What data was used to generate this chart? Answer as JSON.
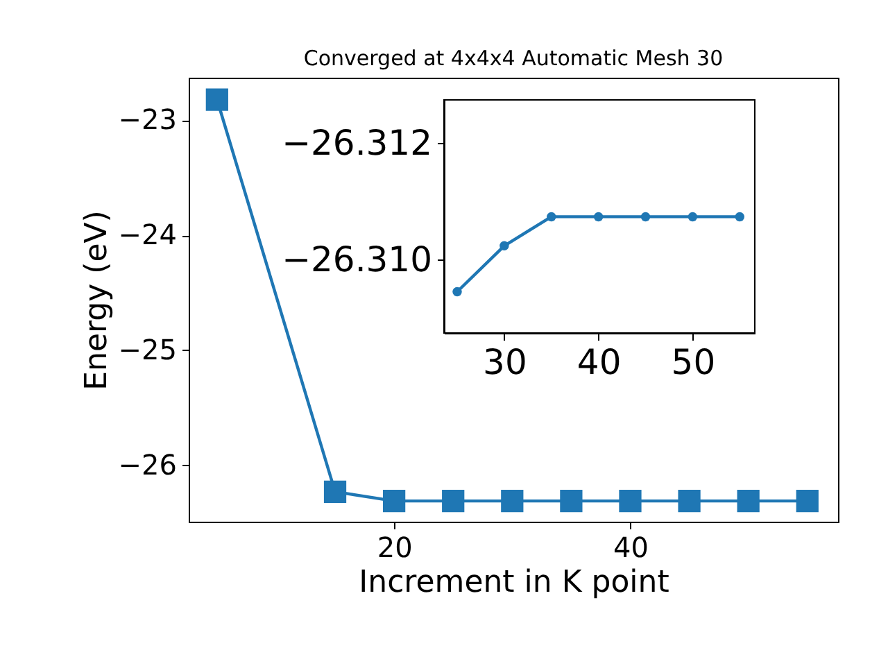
{
  "chart_data": [
    {
      "type": "line",
      "title": "Converged at 4x4x4 Automatic Mesh 30",
      "xlabel": "Increment in K point",
      "ylabel": "Energy (eV)",
      "x": [
        5,
        15,
        20,
        25,
        30,
        35,
        40,
        45,
        50,
        55
      ],
      "series": [
        {
          "color": "#1f77b4",
          "values": [
            -22.82,
            -26.23,
            -26.31,
            -26.31,
            -26.31,
            -26.31,
            -26.31,
            -26.31,
            -26.31,
            -26.31
          ]
        }
      ],
      "xlim": [
        2.6,
        57.6
      ],
      "ylim": [
        -26.49,
        -22.63
      ],
      "xticks": [
        20,
        40
      ],
      "yticks": [
        -26,
        -25,
        -24,
        -23
      ],
      "marker": "square",
      "grid": false
    },
    {
      "type": "line",
      "x": [
        25,
        30,
        35,
        40,
        45,
        50,
        55
      ],
      "series": [
        {
          "color": "#1f77b4",
          "values": [
            -26.30944,
            -26.31023,
            -26.31073,
            -26.31073,
            -26.31073,
            -26.31073,
            -26.31073
          ]
        }
      ],
      "xlim": [
        23.6,
        56.6
      ],
      "ylim": [
        -26.30873,
        -26.31274
      ],
      "xticks": [
        30,
        40,
        50
      ],
      "yticks": [
        {
          "value": -26.312,
          "label": "−26.312"
        },
        {
          "value": -26.31,
          "label": "−26.310"
        }
      ],
      "marker": "circle",
      "grid": false
    }
  ]
}
